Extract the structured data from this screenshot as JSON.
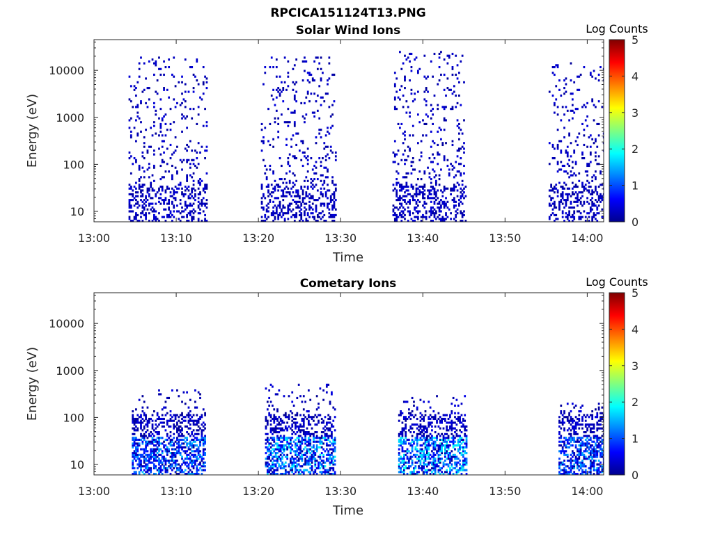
{
  "figure": {
    "filename": "RPCICA151124T13.PNG"
  },
  "colorscale": {
    "label": "Log Counts",
    "range": [
      0,
      5
    ],
    "ticks": [
      "0",
      "1",
      "2",
      "3",
      "4",
      "5"
    ],
    "stops": [
      "#00008f",
      "#0000ff",
      "#0080ff",
      "#00ffff",
      "#80ff80",
      "#ffff00",
      "#ff8000",
      "#ff0000",
      "#800000"
    ]
  },
  "chart_data": [
    {
      "type": "heatmap",
      "title": "Solar Wind Ions",
      "xlabel": "Time",
      "ylabel": "Energy (eV)",
      "xlim_minutes": [
        0,
        62
      ],
      "xticks": [
        "13:00",
        "13:10",
        "13:20",
        "13:30",
        "13:40",
        "13:50",
        "14:00"
      ],
      "xtick_minutes": [
        0,
        10,
        20,
        30,
        40,
        50,
        60
      ],
      "y_scale": "log",
      "ylim": [
        6,
        45000
      ],
      "yticks": [
        "10",
        "100",
        "1000",
        "10000"
      ],
      "ytick_values": [
        10,
        100,
        1000,
        10000
      ],
      "z_range": [
        0,
        5
      ],
      "bursts": [
        {
          "start_min": 4.2,
          "end_min": 13.6,
          "max_energy_ev": 20000,
          "peak_log_counts": 0.4
        },
        {
          "start_min": 20.3,
          "end_min": 29.3,
          "max_energy_ev": 20000,
          "peak_log_counts": 0.4
        },
        {
          "start_min": 36.3,
          "end_min": 45.3,
          "max_energy_ev": 25000,
          "peak_log_counts": 0.4
        },
        {
          "start_min": 55.3,
          "end_min": 62.0,
          "max_energy_ev": 16000,
          "peak_log_counts": 0.4
        }
      ]
    },
    {
      "type": "heatmap",
      "title": "Cometary Ions",
      "xlabel": "Time",
      "ylabel": "Energy (eV)",
      "xlim_minutes": [
        0,
        62
      ],
      "xticks": [
        "13:00",
        "13:10",
        "13:20",
        "13:30",
        "13:40",
        "13:50",
        "14:00"
      ],
      "xtick_minutes": [
        0,
        10,
        20,
        30,
        40,
        50,
        60
      ],
      "y_scale": "log",
      "ylim": [
        6,
        45000
      ],
      "yticks": [
        "10",
        "100",
        "1000",
        "10000"
      ],
      "ytick_values": [
        10,
        100,
        1000,
        10000
      ],
      "z_range": [
        0,
        5
      ],
      "bursts": [
        {
          "start_min": 4.6,
          "end_min": 13.4,
          "max_energy_ev": 400,
          "peak_log_counts": 1.6
        },
        {
          "start_min": 20.8,
          "end_min": 29.3,
          "max_energy_ev": 500,
          "peak_log_counts": 1.9
        },
        {
          "start_min": 37.0,
          "end_min": 45.3,
          "max_energy_ev": 300,
          "peak_log_counts": 2.0
        },
        {
          "start_min": 56.5,
          "end_min": 62.0,
          "max_energy_ev": 200,
          "peak_log_counts": 1.5
        }
      ]
    }
  ]
}
